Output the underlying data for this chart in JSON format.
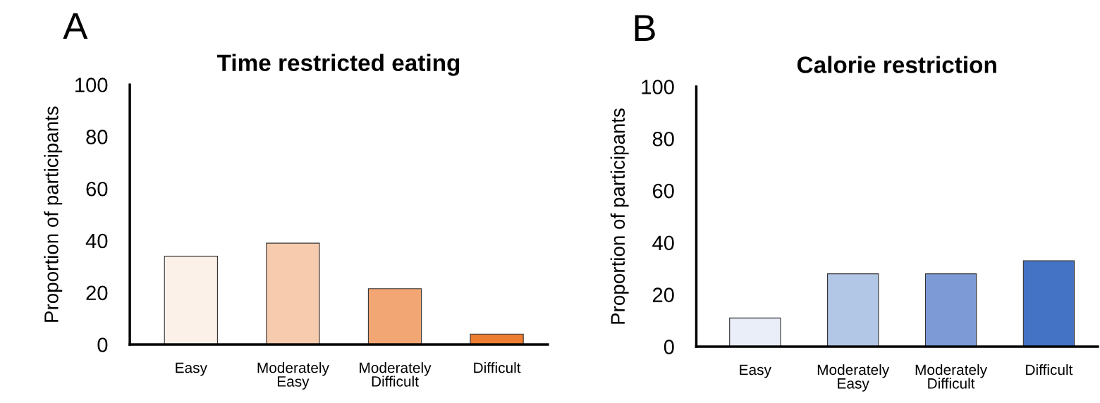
{
  "chart_data": [
    {
      "type": "bar",
      "title": "Time restricted eating",
      "ylabel": "Proportion of participants",
      "annotations": [
        "A"
      ],
      "categories": [
        "Easy",
        "Moderately\nEasy",
        "Moderately\nDifficult",
        "Difficult"
      ],
      "values": [
        34,
        39,
        21.5,
        4
      ],
      "colors": [
        "#fcf1e9",
        "#f7cbae",
        "#f1a673",
        "#ec7d31"
      ],
      "ylim": [
        0,
        100
      ],
      "yticks": [
        0,
        20,
        40,
        60,
        80,
        100
      ],
      "grid": false,
      "legend": false
    },
    {
      "type": "bar",
      "title": "Calorie restriction",
      "ylabel": "Proportion of participants",
      "annotations": [
        "B"
      ],
      "categories": [
        "Easy",
        "Moderately\nEasy",
        "Moderately\nDifficult",
        "Difficult"
      ],
      "values": [
        11,
        28,
        28,
        33
      ],
      "colors": [
        "#e9eef8",
        "#b2c6e6",
        "#7d9ad6",
        "#4472c4"
      ],
      "ylim": [
        0,
        100
      ],
      "yticks": [
        0,
        20,
        40,
        60,
        80,
        100
      ],
      "grid": false,
      "legend": false
    }
  ]
}
